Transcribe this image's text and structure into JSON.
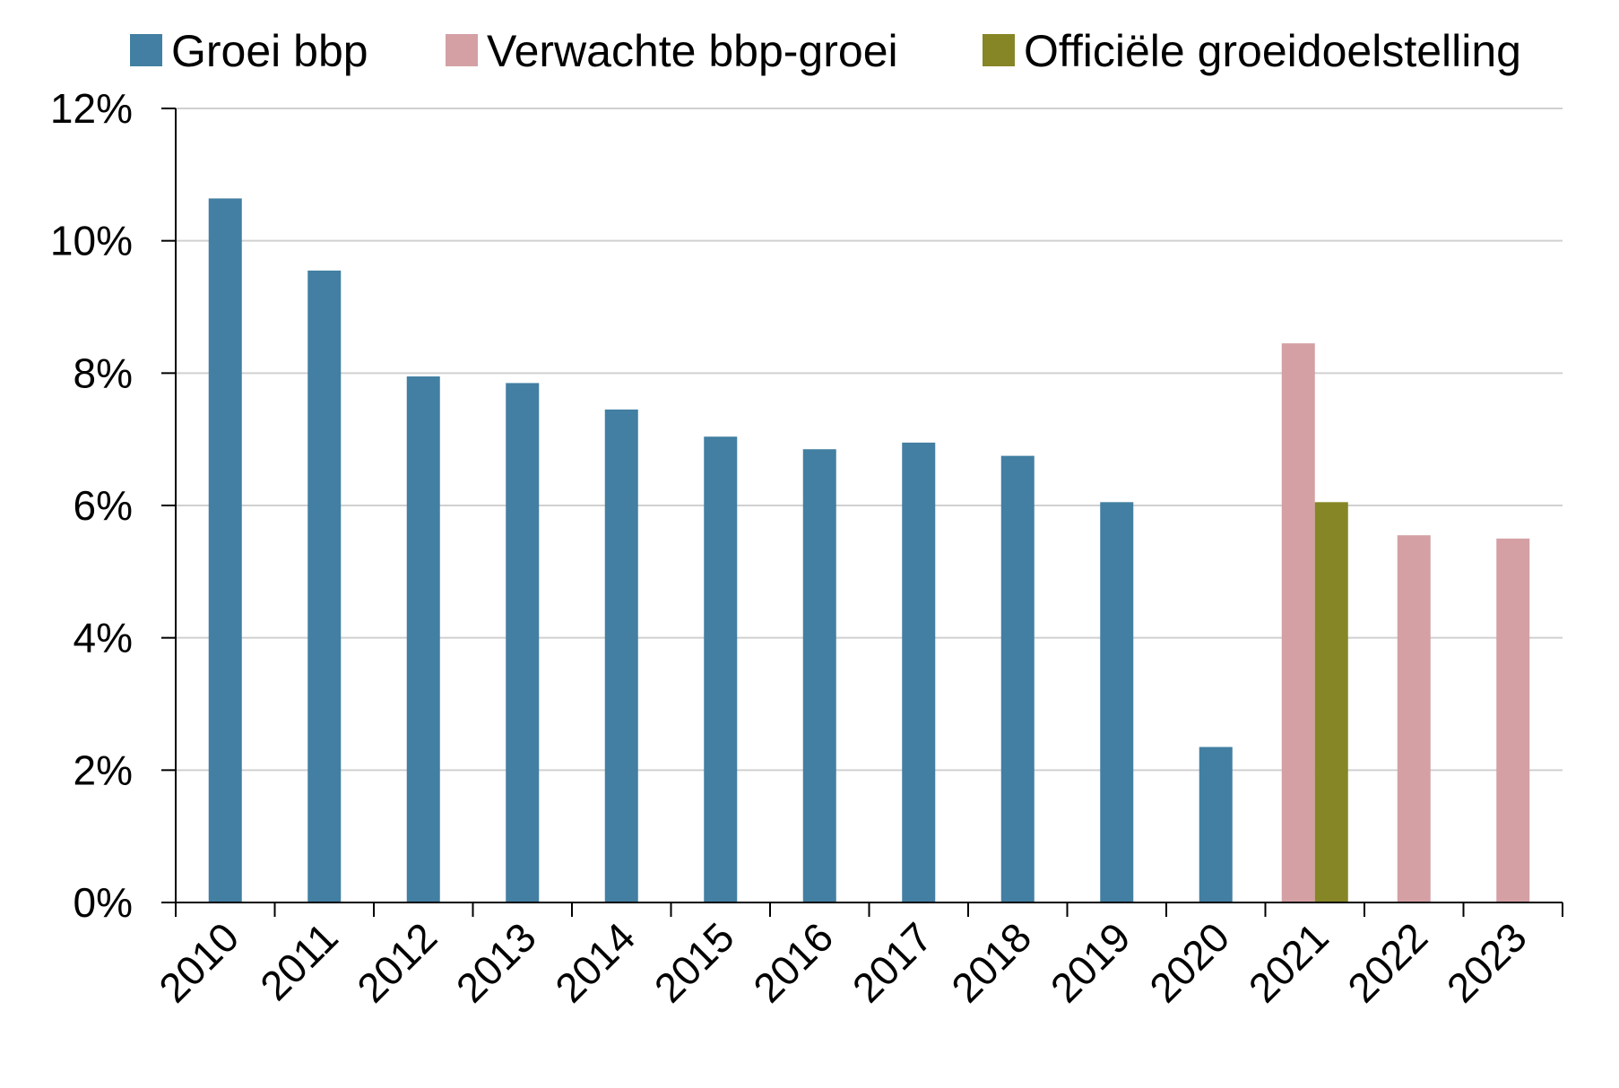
{
  "chart_data": {
    "type": "bar",
    "categories": [
      "2010",
      "2011",
      "2012",
      "2013",
      "2014",
      "2015",
      "2016",
      "2017",
      "2018",
      "2019",
      "2020",
      "2021",
      "2022",
      "2023"
    ],
    "series": [
      {
        "name": "Groei bbp",
        "color": "#427FA2",
        "values": [
          10.64,
          9.55,
          7.95,
          7.85,
          7.45,
          7.04,
          6.85,
          6.95,
          6.75,
          6.05,
          2.35,
          null,
          null,
          null
        ]
      },
      {
        "name": "Verwachte bbp-groei",
        "color": "#D4A0A4",
        "values": [
          null,
          null,
          null,
          null,
          null,
          null,
          null,
          null,
          null,
          null,
          null,
          8.45,
          5.55,
          5.5
        ]
      },
      {
        "name": "Officiële groeidoelstelling",
        "color": "#868626",
        "values": [
          null,
          null,
          null,
          null,
          null,
          null,
          null,
          null,
          null,
          null,
          null,
          6.05,
          null,
          null
        ]
      }
    ],
    "ylim": [
      0,
      12
    ],
    "yticks": [
      0,
      2,
      4,
      6,
      8,
      10,
      12
    ],
    "ytick_labels": [
      "0%",
      "2%",
      "4%",
      "6%",
      "8%",
      "10%",
      "12%"
    ],
    "grid": true,
    "legend_position": "top",
    "title": "",
    "xlabel": "",
    "ylabel": ""
  }
}
